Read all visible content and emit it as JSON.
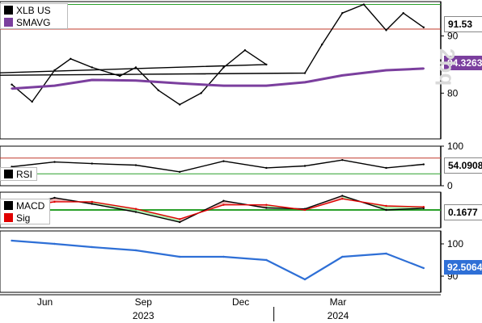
{
  "chart_data": {
    "type": "line",
    "x_axis": {
      "month_labels": [
        "Jun",
        "Sep",
        "Dec",
        "Mar"
      ],
      "year_labels": [
        "2023",
        "2024"
      ]
    },
    "panels": [
      {
        "name": "price",
        "legend": [
          "XLB US",
          "SMAVG"
        ],
        "y_ticks": [
          80,
          90
        ],
        "ylim": [
          72,
          96
        ],
        "last_labels": [
          "91.53",
          "84.3263"
        ],
        "series": [
          {
            "name": "XLB US",
            "color": "#000000",
            "x": [
              "2023-05-01",
              "2023-05-20",
              "2023-06-10",
              "2023-06-25",
              "2023-07-15",
              "2023-08-10",
              "2023-08-25",
              "2023-09-15",
              "2023-10-05",
              "2023-10-25",
              "2023-11-15",
              "2023-12-05",
              "2023-12-25",
              "2023-01-15",
              "2024-01-30",
              "2024-02-15",
              "2024-03-05",
              "2024-03-25",
              "2024-04-15",
              "2024-05-01",
              "2024-05-20"
            ],
            "y": [
              81.5,
              78.5,
              84.0,
              86.0,
              84.5,
              83.0,
              84.5,
              80.5,
              78.0,
              80.0,
              84.5,
              87.5,
              85.0,
              83.0,
              83.5,
              88.5,
              94.0,
              95.5,
              91.0,
              94.0,
              91.5
            ]
          },
          {
            "name": "SMAVG",
            "color": "#7b3f9e",
            "x": [
              "2023-05-01",
              "2023-06-10",
              "2023-07-15",
              "2023-08-25",
              "2023-10-05",
              "2023-11-15",
              "2023-12-25",
              "2024-01-30",
              "2024-03-05",
              "2024-04-15",
              "2024-05-20"
            ],
            "y": [
              80.8,
              81.3,
              82.3,
              82.2,
              81.7,
              81.3,
              81.3,
              81.9,
              83.1,
              84.0,
              84.3
            ]
          }
        ],
        "hlines": [
          {
            "y": 95.5,
            "color": "#2aa02a"
          },
          {
            "y": 91.2,
            "color": "#c0392b"
          }
        ]
      },
      {
        "name": "rsi",
        "legend": [
          "RSI"
        ],
        "y_ticks": [
          0,
          100
        ],
        "ylim": [
          0,
          100
        ],
        "last_labels": [
          "54.0908"
        ],
        "hlines": [
          {
            "y": 70,
            "color": "#c0392b"
          },
          {
            "y": 30,
            "color": "#2aa02a"
          }
        ],
        "series": [
          {
            "name": "RSI",
            "color": "#000000",
            "x": [
              "2023-05-01",
              "2023-06-10",
              "2023-07-15",
              "2023-08-25",
              "2023-10-05",
              "2023-11-15",
              "2023-12-25",
              "2024-01-30",
              "2024-03-05",
              "2024-04-15",
              "2024-05-20"
            ],
            "y": [
              48,
              60,
              56,
              52,
              35,
              62,
              45,
              50,
              65,
              45,
              54
            ]
          }
        ]
      },
      {
        "name": "macd",
        "legend": [
          "MACD",
          "Sig"
        ],
        "last_labels": [
          "0.1677"
        ],
        "series": [
          {
            "name": "MACD",
            "color": "#000000",
            "x": [
              "2023-05-01",
              "2023-06-10",
              "2023-07-15",
              "2023-08-25",
              "2023-10-05",
              "2023-11-15",
              "2023-12-25",
              "2024-01-30",
              "2024-03-05",
              "2024-04-15",
              "2024-05-20"
            ],
            "y": [
              0.2,
              1.2,
              0.6,
              -0.2,
              -1.2,
              0.9,
              0.2,
              0.1,
              1.4,
              0.0,
              0.17
            ]
          },
          {
            "name": "Sig",
            "color": "#e00000",
            "x": [
              "2023-05-01",
              "2023-06-10",
              "2023-07-15",
              "2023-08-25",
              "2023-10-05",
              "2023-11-15",
              "2023-12-25",
              "2024-01-30",
              "2024-03-05",
              "2024-04-15",
              "2024-05-20"
            ],
            "y": [
              0.1,
              0.8,
              0.8,
              0.1,
              -0.9,
              0.5,
              0.5,
              0.0,
              1.1,
              0.4,
              0.3
            ]
          }
        ]
      },
      {
        "name": "third",
        "y_ticks": [
          90,
          100
        ],
        "ylim": [
          85,
          104
        ],
        "last_labels": [
          "92.5064"
        ],
        "series": [
          {
            "color": "#2e6fd6",
            "x": [
              "2023-05-01",
              "2023-06-10",
              "2023-07-15",
              "2023-08-25",
              "2023-10-05",
              "2023-11-15",
              "2023-12-25",
              "2024-01-30",
              "2024-03-05",
              "2024-04-15",
              "2024-05-20"
            ],
            "y": [
              101,
              100,
              99,
              98,
              96,
              96,
              95,
              89,
              96,
              97,
              92.5
            ]
          }
        ]
      }
    ]
  },
  "watermark": "2bq"
}
